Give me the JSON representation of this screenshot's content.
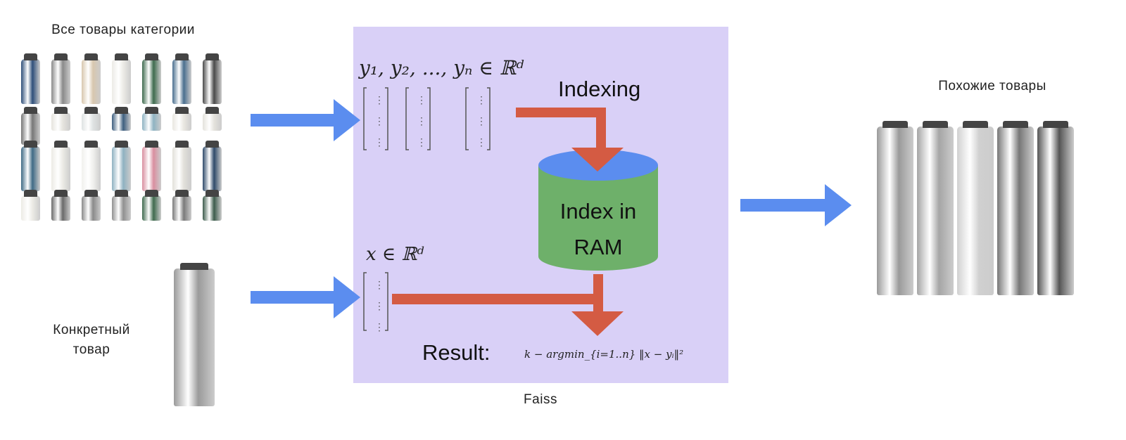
{
  "labels": {
    "all_items": "Все товары категории",
    "specific_item_line1": "Конкретный",
    "specific_item_line2": "товар",
    "similar_items": "Похожие товары",
    "faiss": "Faiss"
  },
  "faiss_box": {
    "vectors_label": "y₁, y₂, ..., yₙ ∈ ℝᵈ",
    "query_label": "x ∈ ℝᵈ",
    "indexing": "Indexing",
    "index_line1": "Index in",
    "index_line2": "RAM",
    "result": "Result:",
    "formula": "k − argmin_{i=1..n} ‖x − yᵢ‖²"
  },
  "colors": {
    "panel": "#d9d0f7",
    "blue_arrow": "#5b8def",
    "red_arrow": "#d45b43",
    "cylinder_top": "#5b8def",
    "cylinder_body": "#6eb06a"
  },
  "catalog_bottles": [
    "#2f4f7a",
    "#8a8a8a",
    "#d8c7ae",
    "#ecebe6",
    "#3e6b4e",
    "#4a6f8f",
    "#4a4a4a",
    "#777777",
    "#e6e4de",
    "#dfe3e3",
    "#3e5f7f",
    "#8fb3c2",
    "#e9e7e1",
    "#e4e2dc",
    "#3f6a85",
    "#ecebe5",
    "#f1f1ee",
    "#8fb1c1",
    "#d98fa0",
    "#e2e0da",
    "#2f4a6a",
    "#ecebe5",
    "#6a6a6a",
    "#8a8a8a",
    "#909090",
    "#3f6a4e",
    "#7a7a7a",
    "#3d5c4c"
  ],
  "similar_bottles": [
    "#9a9a9a",
    "#a5a5a5",
    "#d0d0d0",
    "#777777",
    "#555555"
  ]
}
